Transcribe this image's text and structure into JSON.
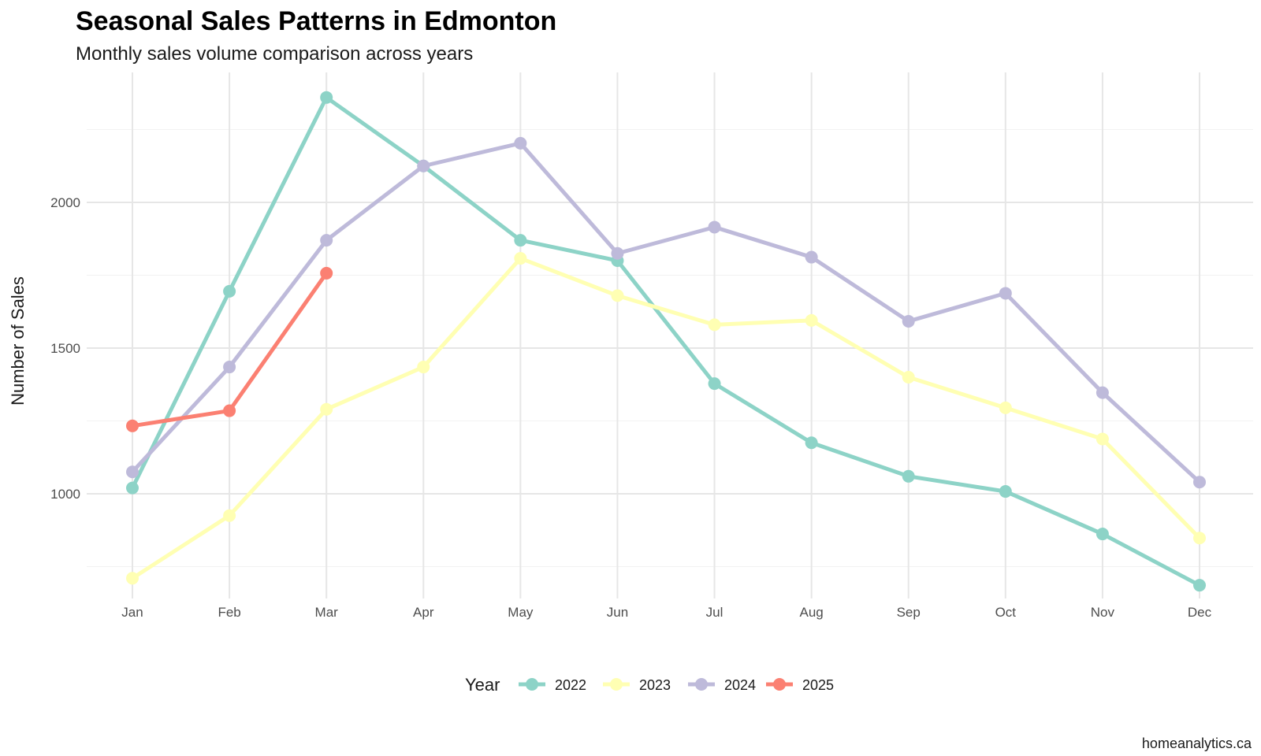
{
  "chart_data": {
    "type": "line",
    "title": "Seasonal Sales Patterns in Edmonton",
    "subtitle": "Monthly sales volume comparison across years",
    "xlabel": "",
    "ylabel": "Number of Sales",
    "categories": [
      "Jan",
      "Feb",
      "Mar",
      "Apr",
      "May",
      "Jun",
      "Jul",
      "Aug",
      "Sep",
      "Oct",
      "Nov",
      "Dec"
    ],
    "ylim": [
      625,
      2450
    ],
    "yticks": [
      1000,
      1500,
      2000
    ],
    "grid": true,
    "legend_title": "Year",
    "legend_position": "bottom",
    "caption": "homeanalytics.ca",
    "series": [
      {
        "name": "2022",
        "color": "#8dd3c7",
        "values": [
          1020,
          1695,
          2360,
          2125,
          1870,
          1800,
          1378,
          1175,
          1060,
          1008,
          862,
          686
        ]
      },
      {
        "name": "2023",
        "color": "#ffffb3",
        "values": [
          710,
          925,
          1290,
          1435,
          1808,
          1680,
          1580,
          1595,
          1400,
          1295,
          1188,
          848
        ]
      },
      {
        "name": "2024",
        "color": "#bebada",
        "values": [
          1075,
          1435,
          1870,
          2125,
          2203,
          1825,
          1915,
          1812,
          1592,
          1688,
          1347,
          1040
        ]
      },
      {
        "name": "2025",
        "color": "#fb8072",
        "values": [
          1233,
          1285,
          1757,
          null,
          null,
          null,
          null,
          null,
          null,
          null,
          null,
          null
        ]
      }
    ]
  }
}
